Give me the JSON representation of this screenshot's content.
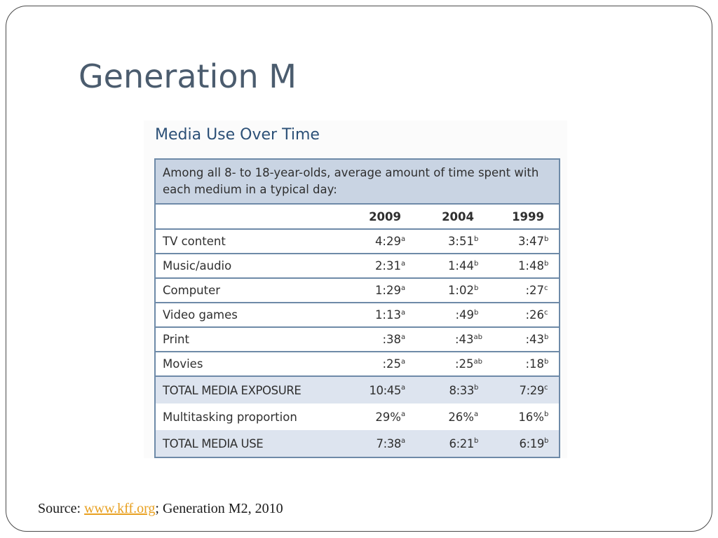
{
  "slide": {
    "title": "Generation M"
  },
  "figure": {
    "title": "Media Use Over Time",
    "caption": "Among all 8- to 18-year-olds, average amount of time spent with each medium in a typical day:",
    "columns": [
      "2009",
      "2004",
      "1999"
    ],
    "rows": [
      {
        "label": "TV content",
        "values": [
          {
            "value": "4:29",
            "sup": "a"
          },
          {
            "value": "3:51",
            "sup": "b"
          },
          {
            "value": "3:47",
            "sup": "b"
          }
        ]
      },
      {
        "label": "Music/audio",
        "values": [
          {
            "value": "2:31",
            "sup": "a"
          },
          {
            "value": "1:44",
            "sup": "b"
          },
          {
            "value": "1:48",
            "sup": "b"
          }
        ]
      },
      {
        "label": "Computer",
        "values": [
          {
            "value": "1:29",
            "sup": "a"
          },
          {
            "value": "1:02",
            "sup": "b"
          },
          {
            "value": ":27",
            "sup": "c"
          }
        ]
      },
      {
        "label": "Video games",
        "values": [
          {
            "value": "1:13",
            "sup": "a"
          },
          {
            "value": ":49",
            "sup": "b"
          },
          {
            "value": ":26",
            "sup": "c"
          }
        ]
      },
      {
        "label": "Print",
        "values": [
          {
            "value": ":38",
            "sup": "a"
          },
          {
            "value": ":43",
            "sup": "ab"
          },
          {
            "value": ":43",
            "sup": "b"
          }
        ]
      },
      {
        "label": "Movies",
        "values": [
          {
            "value": ":25",
            "sup": "a"
          },
          {
            "value": ":25",
            "sup": "ab"
          },
          {
            "value": ":18",
            "sup": "b"
          }
        ]
      },
      {
        "label": "TOTAL MEDIA EXPOSURE",
        "values": [
          {
            "value": "10:45",
            "sup": "a"
          },
          {
            "value": "8:33",
            "sup": "b"
          },
          {
            "value": "7:29",
            "sup": "c"
          }
        ]
      },
      {
        "label": "Multitasking proportion",
        "values": [
          {
            "value": "29%",
            "sup": "a"
          },
          {
            "value": "26%",
            "sup": "a"
          },
          {
            "value": "16%",
            "sup": "b"
          }
        ]
      },
      {
        "label": "TOTAL MEDIA USE",
        "values": [
          {
            "value": "7:38",
            "sup": "a"
          },
          {
            "value": "6:21",
            "sup": "b"
          },
          {
            "value": "6:19",
            "sup": "b"
          }
        ]
      }
    ]
  },
  "source": {
    "prefix": "Source: ",
    "link_text": "www.kff.org",
    "suffix": "; Generation M2, 2010"
  },
  "colors": {
    "title": "#4b5c6e",
    "figure_title": "#2c5077",
    "table_border": "#6e8aa8",
    "caption_bg": "#c9d4e3",
    "total_row_bg": "#dde4ef",
    "link": "#e8a020"
  }
}
